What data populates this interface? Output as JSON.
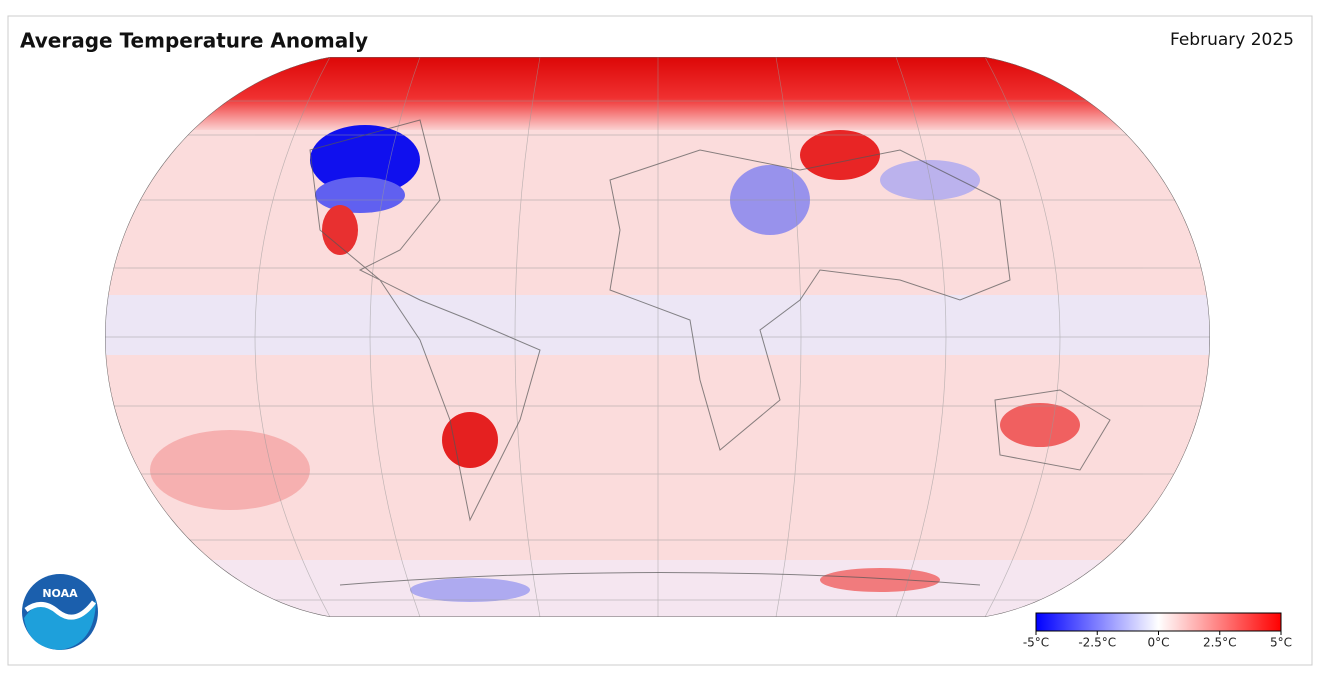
{
  "header": {
    "title": "Average Temperature Anomaly",
    "date": "February 2025"
  },
  "logo": {
    "label": "NOAA"
  },
  "colorbar": {
    "lim": [
      -5,
      5
    ],
    "colors": [
      "#0000ff",
      "#ffffff",
      "#ff0000"
    ],
    "ticks": [
      {
        "value": -5,
        "label": "-5°C"
      },
      {
        "value": -2.5,
        "label": "-2.5°C"
      },
      {
        "value": 0,
        "label": "0°C"
      },
      {
        "value": 2.5,
        "label": "2.5°C"
      },
      {
        "value": 5,
        "label": "5°C"
      }
    ]
  }
}
